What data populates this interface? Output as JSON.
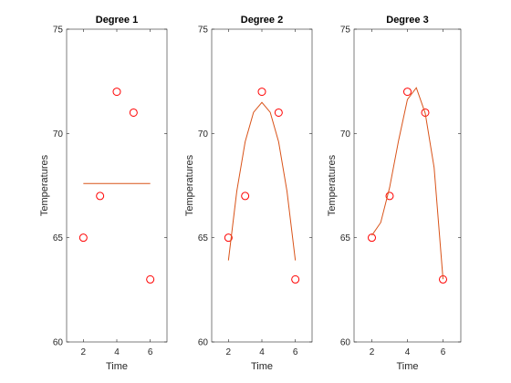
{
  "chart_data": [
    {
      "type": "scatter",
      "title": "Degree 1",
      "xlabel": "Time",
      "ylabel": "Temperatures",
      "xlim": [
        1,
        7
      ],
      "ylim": [
        60,
        75
      ],
      "xticks": [
        2,
        4,
        6
      ],
      "yticks": [
        60,
        65,
        70,
        75
      ],
      "grid": false,
      "series": [
        {
          "kind": "markers",
          "x": [
            2,
            3,
            4,
            5,
            6
          ],
          "y": [
            65,
            67,
            72,
            71,
            63
          ]
        },
        {
          "kind": "line",
          "x": [
            2,
            6
          ],
          "y": [
            67.6,
            67.6
          ]
        }
      ],
      "colors": {
        "markers": "#ff0000",
        "line": "#d95319"
      }
    },
    {
      "type": "scatter",
      "title": "Degree 2",
      "xlabel": "Time",
      "ylabel": "Temperatures",
      "xlim": [
        1,
        7
      ],
      "ylim": [
        60,
        75
      ],
      "xticks": [
        2,
        4,
        6
      ],
      "yticks": [
        60,
        65,
        70,
        75
      ],
      "grid": false,
      "series": [
        {
          "kind": "markers",
          "x": [
            2,
            3,
            4,
            5,
            6
          ],
          "y": [
            65,
            67,
            72,
            71,
            63
          ]
        },
        {
          "kind": "line",
          "x": [
            2,
            2.5,
            3,
            3.5,
            4,
            4.5,
            5,
            5.5,
            6
          ],
          "y": [
            63.91,
            67.23,
            69.6,
            71.01,
            71.49,
            71.01,
            69.6,
            67.23,
            63.91
          ]
        }
      ],
      "colors": {
        "markers": "#ff0000",
        "line": "#d95319"
      }
    },
    {
      "type": "scatter",
      "title": "Degree 3",
      "xlabel": "Time",
      "ylabel": "Temperatures",
      "xlim": [
        1,
        7
      ],
      "ylim": [
        60,
        75
      ],
      "xticks": [
        2,
        4,
        6
      ],
      "yticks": [
        60,
        65,
        70,
        75
      ],
      "grid": false,
      "series": [
        {
          "kind": "markers",
          "x": [
            2,
            3,
            4,
            5,
            6
          ],
          "y": [
            65,
            67,
            72,
            71,
            63
          ]
        },
        {
          "kind": "line",
          "x": [
            2,
            2.5,
            3,
            3.5,
            4,
            4.5,
            5,
            5.5,
            6
          ],
          "y": [
            65.11,
            65.73,
            67.41,
            69.65,
            71.63,
            72.19,
            70.97,
            68.36,
            63.01
          ]
        }
      ],
      "colors": {
        "markers": "#ff0000",
        "line": "#d95319"
      }
    }
  ]
}
